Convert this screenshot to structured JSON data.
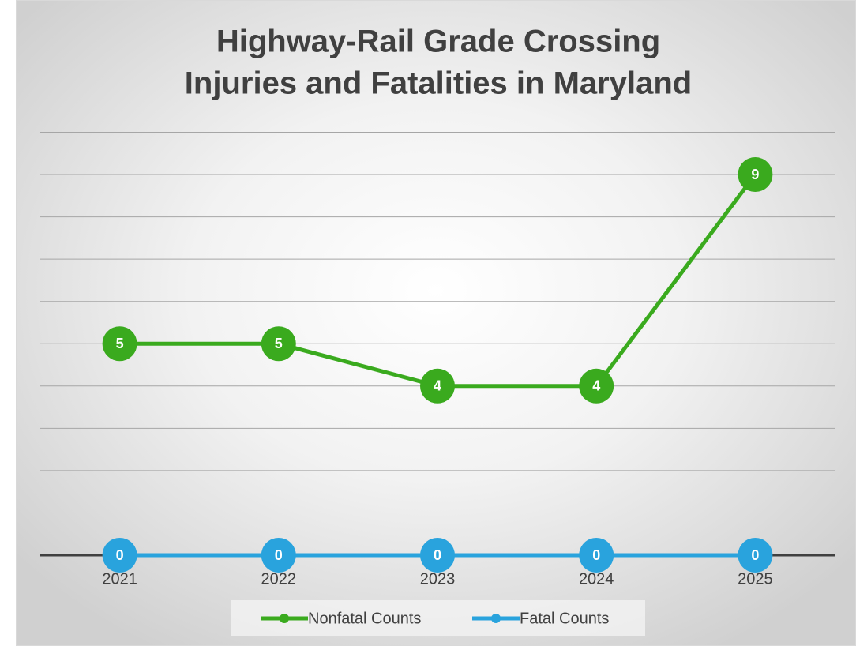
{
  "chart_data": {
    "type": "line",
    "title": [
      "Highway-Rail Grade Crossing",
      "Injuries and Fatalities in Maryland"
    ],
    "categories": [
      "2021",
      "2022",
      "2023",
      "2024",
      "2025"
    ],
    "series": [
      {
        "name": "Nonfatal Counts",
        "color": "#3aaa1e",
        "values": [
          5,
          5,
          4,
          4,
          9
        ]
      },
      {
        "name": "Fatal Counts",
        "color": "#29a3dd",
        "values": [
          0,
          0,
          0,
          0,
          0
        ]
      }
    ],
    "ylim": [
      0,
      10
    ],
    "yticks": [
      0,
      1,
      2,
      3,
      4,
      5,
      6,
      7,
      8,
      9,
      10
    ],
    "grid": true,
    "legend": "bottom"
  }
}
